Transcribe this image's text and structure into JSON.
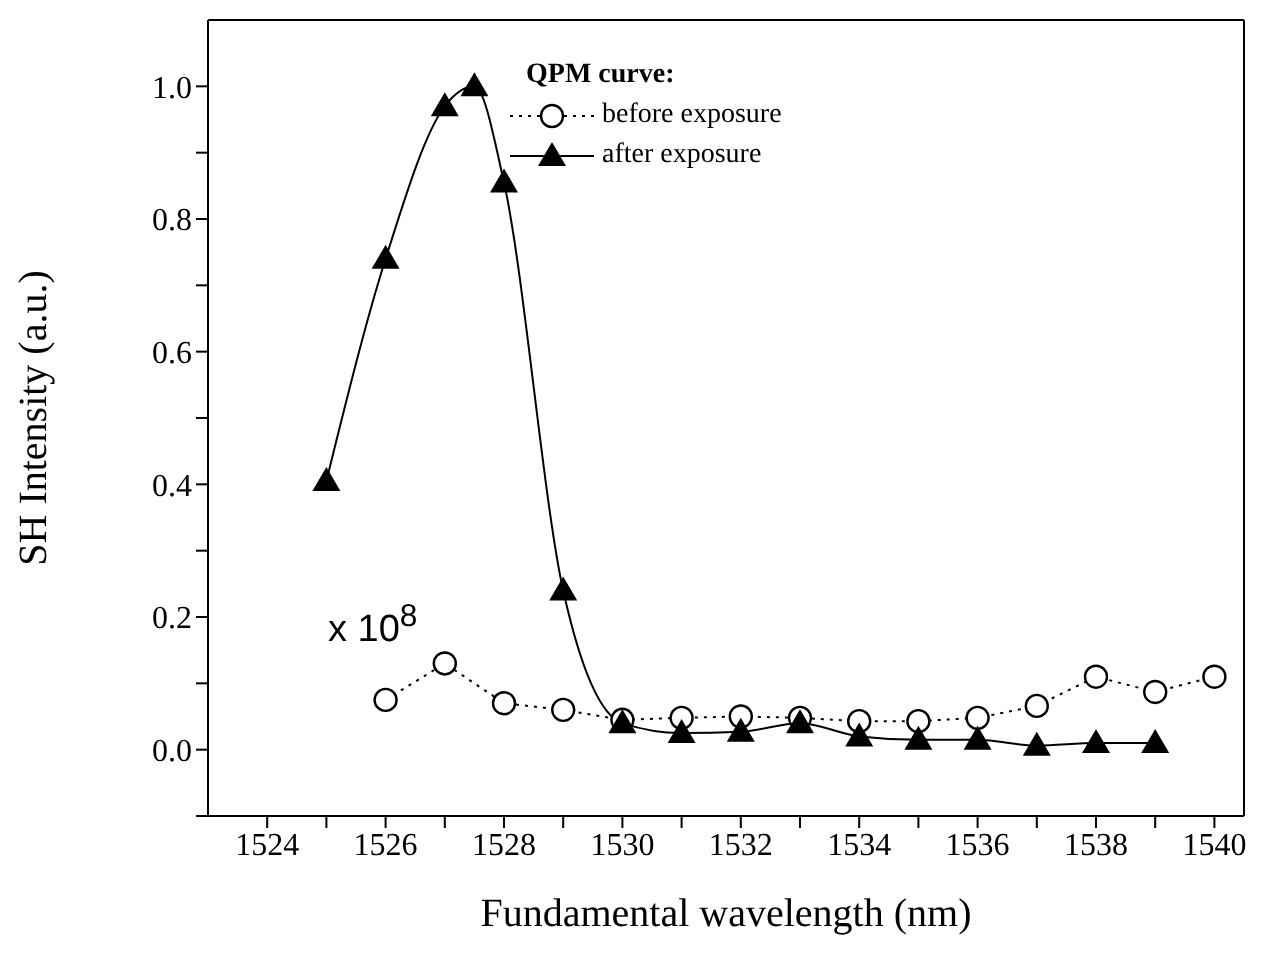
{
  "chart_data": {
    "type": "line",
    "xlabel": "Fundamental wavelength (nm)",
    "ylabel": "SH Intensity (a.u.)",
    "legend_title": "QPM curve:",
    "legend": "top",
    "grid": false,
    "xlim": [
      1523,
      1540.5
    ],
    "xticks": [
      1524,
      {
        "value": 1525,
        "label": null
      },
      1526,
      {
        "value": 1527,
        "label": null
      },
      1528,
      {
        "value": 1529,
        "label": null
      },
      1530,
      {
        "value": 1531,
        "label": null
      },
      1532,
      {
        "value": 1533,
        "label": null
      },
      1534,
      {
        "value": 1535,
        "label": null
      },
      1536,
      {
        "value": 1537,
        "label": null
      },
      1538,
      {
        "value": 1539,
        "label": null
      },
      1540
    ],
    "ylim": [
      -0.1,
      1.1
    ],
    "yticks": [
      {
        "value": -0.1,
        "label": null
      },
      "0.0",
      {
        "value": 0.1,
        "label": null
      },
      {
        "value": 0.2,
        "label": "0.2"
      },
      {
        "value": 0.3,
        "label": null
      },
      {
        "value": 0.4,
        "label": "0.4"
      },
      {
        "value": 0.5,
        "label": null
      },
      {
        "value": 0.6,
        "label": "0.6"
      },
      {
        "value": 0.7,
        "label": null
      },
      {
        "value": 0.8,
        "label": "0.8"
      },
      {
        "value": 0.9,
        "label": null
      },
      {
        "value": 1.0,
        "label": "1.0"
      }
    ],
    "series": [
      {
        "name": "before exposure",
        "color": "#000000",
        "marker": "circle",
        "line_style": "dotted",
        "x": [
          1526,
          1527,
          1528,
          1529,
          1530,
          1531,
          1532,
          1533,
          1534,
          1535,
          1536,
          1537,
          1538,
          1539,
          1540
        ],
        "values": [
          0.075,
          0.13,
          0.07,
          0.06,
          0.045,
          0.048,
          0.05,
          0.048,
          0.043,
          0.043,
          0.048,
          0.066,
          0.11,
          0.087,
          0.11
        ]
      },
      {
        "name": "after exposure",
        "color": "#000000",
        "marker": "triangle",
        "line_style": "solid",
        "x": [
          1525,
          1526,
          1527,
          1527.5,
          1528,
          1529,
          1530,
          1531,
          1532,
          1533,
          1534,
          1535,
          1536,
          1537,
          1538,
          1539
        ],
        "values": [
          0.405,
          0.74,
          0.97,
          1.0,
          0.855,
          0.24,
          0.04,
          0.025,
          0.027,
          0.04,
          0.02,
          0.015,
          0.015,
          0.006,
          0.01,
          0.01
        ]
      }
    ],
    "annotations": [
      "x 10$^{8}$"
    ]
  }
}
